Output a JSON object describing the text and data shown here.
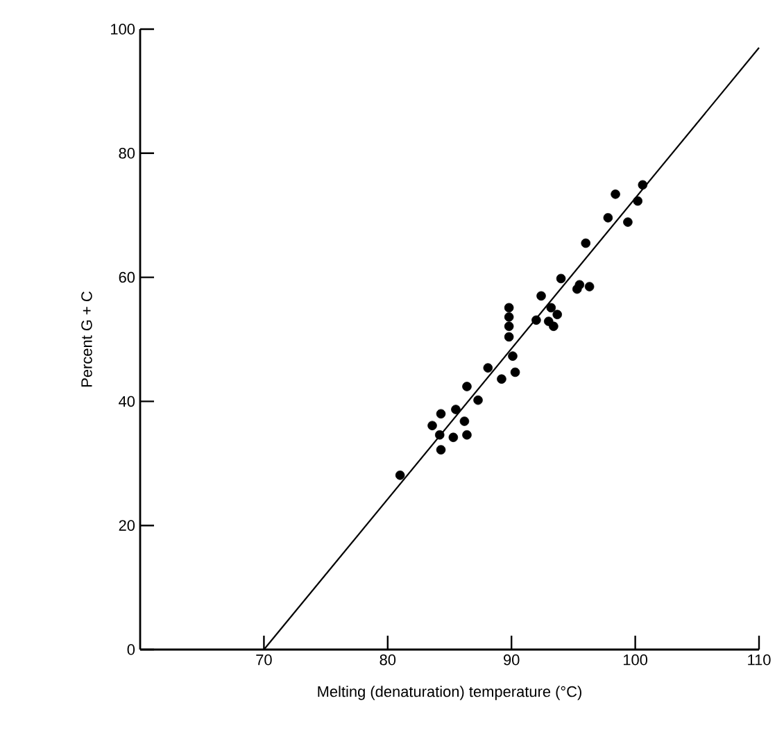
{
  "chart_data": {
    "type": "scatter",
    "xlabel": "Melting (denaturation) temperature (°C)",
    "ylabel": "Percent G + C",
    "xlim": [
      60,
      110
    ],
    "ylim": [
      0,
      100
    ],
    "xticks": [
      70,
      80,
      90,
      100,
      110
    ],
    "yticks": [
      0,
      20,
      40,
      60,
      80,
      100
    ],
    "grid": false,
    "marker": "circle",
    "series": [
      {
        "color": "#000000",
        "x": [
          81.0,
          84.3,
          85.5,
          86.2,
          83.6,
          84.2,
          85.3,
          86.4,
          84.3,
          86.4,
          87.3,
          88.1,
          89.2,
          90.1,
          90.3,
          89.8,
          89.8,
          89.8,
          89.8,
          92.4,
          94.0,
          92.0,
          93.0,
          93.7,
          93.2,
          93.4,
          95.5,
          96.3,
          95.3,
          96.0,
          97.8,
          99.4,
          98.4,
          100.2,
          100.6
        ],
        "values": [
          28.1,
          38.0,
          38.7,
          36.8,
          36.1,
          34.6,
          34.2,
          34.6,
          32.2,
          42.4,
          40.2,
          45.4,
          43.6,
          47.3,
          44.7,
          55.1,
          53.6,
          52.1,
          50.4,
          57.0,
          59.8,
          53.1,
          52.9,
          54.0,
          55.1,
          52.1,
          58.8,
          58.5,
          58.1,
          65.5,
          69.6,
          68.9,
          73.4,
          72.3,
          74.9
        ]
      },
      {
        "type": "line",
        "color": "#000000",
        "marker": "none",
        "line_style": "solid",
        "x": [
          70,
          110
        ],
        "values": [
          0,
          97
        ]
      }
    ]
  }
}
